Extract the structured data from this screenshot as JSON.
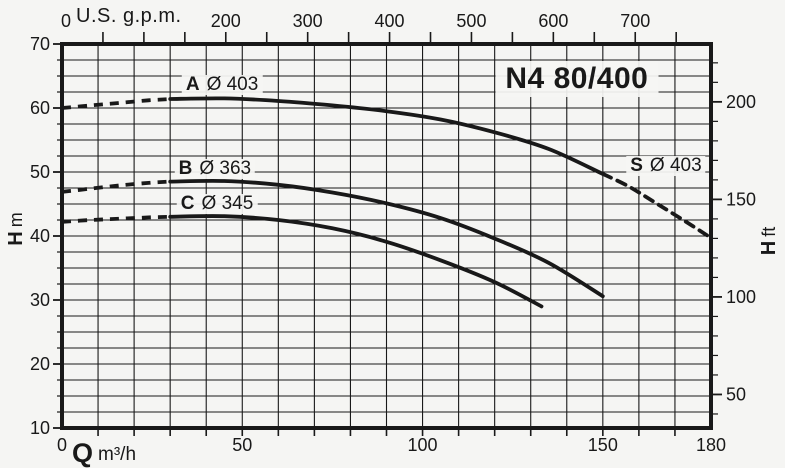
{
  "meta": {
    "description": "Pump performance curve chart (head vs flow)",
    "ink_color": "#191919",
    "paper_color": "#f5f5f3"
  },
  "chart_data": {
    "type": "line",
    "title": "N4 80/400",
    "title_pos": {
      "q": 142.8,
      "h": 64.5
    },
    "grid": "on",
    "x_axis_bottom": {
      "label_symbol": "Q",
      "label_unit": "m³/h",
      "min": 0,
      "max": 180,
      "tick_step": 10,
      "tick_labels": [
        0,
        50,
        100,
        150,
        180
      ]
    },
    "x_axis_top": {
      "label": "U.S. g.p.m.",
      "zero_label": "0",
      "gpm_per_m3h": 4.40287,
      "tick_step_gpm": 50,
      "max_tick_gpm": 750,
      "tick_labels_gpm": [
        200,
        300,
        400,
        500,
        600,
        700
      ]
    },
    "y_axis_left": {
      "label_symbol": "H",
      "label_unit": "m",
      "min": 10,
      "max": 70,
      "grid_step": 2.5,
      "major_tick_step": 10,
      "tick_labels": [
        70,
        60,
        50,
        40,
        30,
        20,
        10
      ]
    },
    "y_axis_right": {
      "label_symbol": "H",
      "label_unit": "ft",
      "ft_per_m": 3.2808,
      "tick_step_ft": 10,
      "min_tick_ft": 40,
      "max_tick_ft": 220,
      "tick_labels_ft": [
        200,
        150,
        100,
        50
      ]
    },
    "series": [
      {
        "id": "A",
        "name": "A Ø 403",
        "impeller": "Ø 403",
        "style": "solid",
        "lead_in_dashed": [
          [
            0,
            60.0
          ],
          [
            8,
            60.4
          ],
          [
            16,
            60.8
          ],
          [
            24,
            61.2
          ],
          [
            30,
            61.4
          ]
        ],
        "points": [
          [
            30,
            61.4
          ],
          [
            45,
            61.5
          ],
          [
            60,
            61.1
          ],
          [
            75,
            60.4
          ],
          [
            90,
            59.5
          ],
          [
            105,
            58.2
          ],
          [
            120,
            56.2
          ],
          [
            135,
            53.6
          ],
          [
            150,
            49.7
          ]
        ]
      },
      {
        "id": "S",
        "name": "S Ø 403",
        "impeller": "Ø 403",
        "style": "dashed",
        "points": [
          [
            150,
            49.7
          ],
          [
            157,
            47.8
          ],
          [
            164,
            45.4
          ],
          [
            172,
            42.6
          ],
          [
            180,
            39.7
          ]
        ]
      },
      {
        "id": "B",
        "name": "B Ø 363",
        "impeller": "Ø 363",
        "style": "solid",
        "lead_in_dashed": [
          [
            0,
            46.9
          ],
          [
            8,
            47.4
          ],
          [
            16,
            47.9
          ],
          [
            24,
            48.3
          ],
          [
            30,
            48.5
          ]
        ],
        "points": [
          [
            30,
            48.5
          ],
          [
            45,
            48.6
          ],
          [
            60,
            48.0
          ],
          [
            75,
            46.8
          ],
          [
            90,
            45.1
          ],
          [
            105,
            42.8
          ],
          [
            120,
            39.6
          ],
          [
            135,
            35.8
          ],
          [
            150,
            30.6
          ]
        ]
      },
      {
        "id": "C",
        "name": "C Ø 345",
        "impeller": "Ø 345",
        "style": "solid",
        "lead_in_dashed": [
          [
            0,
            42.2
          ],
          [
            8,
            42.5
          ],
          [
            16,
            42.7
          ],
          [
            24,
            42.9
          ],
          [
            30,
            43.0
          ]
        ],
        "points": [
          [
            30,
            43.0
          ],
          [
            45,
            43.1
          ],
          [
            60,
            42.5
          ],
          [
            75,
            41.2
          ],
          [
            90,
            39.1
          ],
          [
            105,
            36.2
          ],
          [
            120,
            32.8
          ],
          [
            133,
            29.0
          ]
        ]
      }
    ],
    "annotations": [
      {
        "letter": "A",
        "text": "Ø 403",
        "q": 44.4,
        "h": 63.6
      },
      {
        "letter": "B",
        "text": "Ø 363",
        "q": 42.4,
        "h": 50.5
      },
      {
        "letter": "C",
        "text": "Ø 345",
        "q": 43.0,
        "h": 45.0
      },
      {
        "letter": "S",
        "text": "Ø 403",
        "q": 167.5,
        "h": 51.0
      }
    ]
  }
}
